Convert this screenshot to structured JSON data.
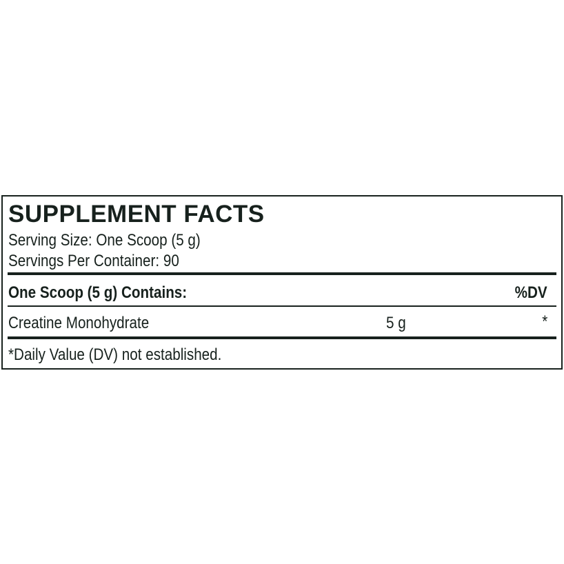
{
  "label": {
    "title": "SUPPLEMENT FACTS",
    "serving_size": "Serving Size: One Scoop (5 g)",
    "servings_per_container": "Servings Per Container: 90",
    "header": {
      "contains": "One Scoop (5 g) Contains:",
      "dv": "%DV"
    },
    "rows": [
      {
        "name": "Creatine Monohydrate",
        "amount": "5 g",
        "dv": "*"
      }
    ],
    "footnote": "*Daily Value (DV) not established."
  }
}
